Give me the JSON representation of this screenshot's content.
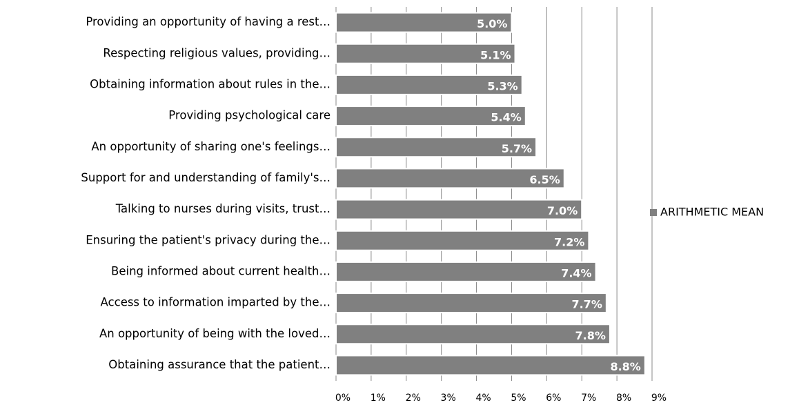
{
  "chart_data": {
    "type": "bar",
    "orientation": "horizontal",
    "categories": [
      "Providing an opportunity of having a rest…",
      "Respecting religious values, providing…",
      "Obtaining information about rules in the…",
      "Providing psychological care",
      "An opportunity of sharing one's feelings…",
      "Support for and understanding of family's…",
      "Talking to nurses during visits, trust…",
      "Ensuring the patient's privacy during the…",
      "Being informed about current health…",
      "Access to information imparted by the…",
      "An opportunity of being with the loved…",
      "Obtaining assurance that the patient…"
    ],
    "series": [
      {
        "name": "ARITHMETIC MEAN",
        "color": "#808080",
        "values": [
          5.0,
          5.1,
          5.3,
          5.4,
          5.7,
          6.5,
          7.0,
          7.2,
          7.4,
          7.7,
          7.8,
          8.8
        ],
        "value_labels": [
          "5.0%",
          "5.1%",
          "5.3%",
          "5.4%",
          "5.7%",
          "6.5%",
          "7.0%",
          "7.2%",
          "7.4%",
          "7.7%",
          "7.8%",
          "8.8%"
        ]
      }
    ],
    "xlim": [
      0,
      9
    ],
    "xticks": [
      {
        "value": 0,
        "label": "0%"
      },
      {
        "value": 1,
        "label": "1%"
      },
      {
        "value": 2,
        "label": "2%"
      },
      {
        "value": 3,
        "label": "3%"
      },
      {
        "value": 4,
        "label": "4%"
      },
      {
        "value": 5,
        "label": "5%"
      },
      {
        "value": 6,
        "label": "6%"
      },
      {
        "value": 7,
        "label": "7%"
      },
      {
        "value": 8,
        "label": "8%"
      },
      {
        "value": 9,
        "label": "9%"
      }
    ],
    "grid": true,
    "legend": "right"
  }
}
